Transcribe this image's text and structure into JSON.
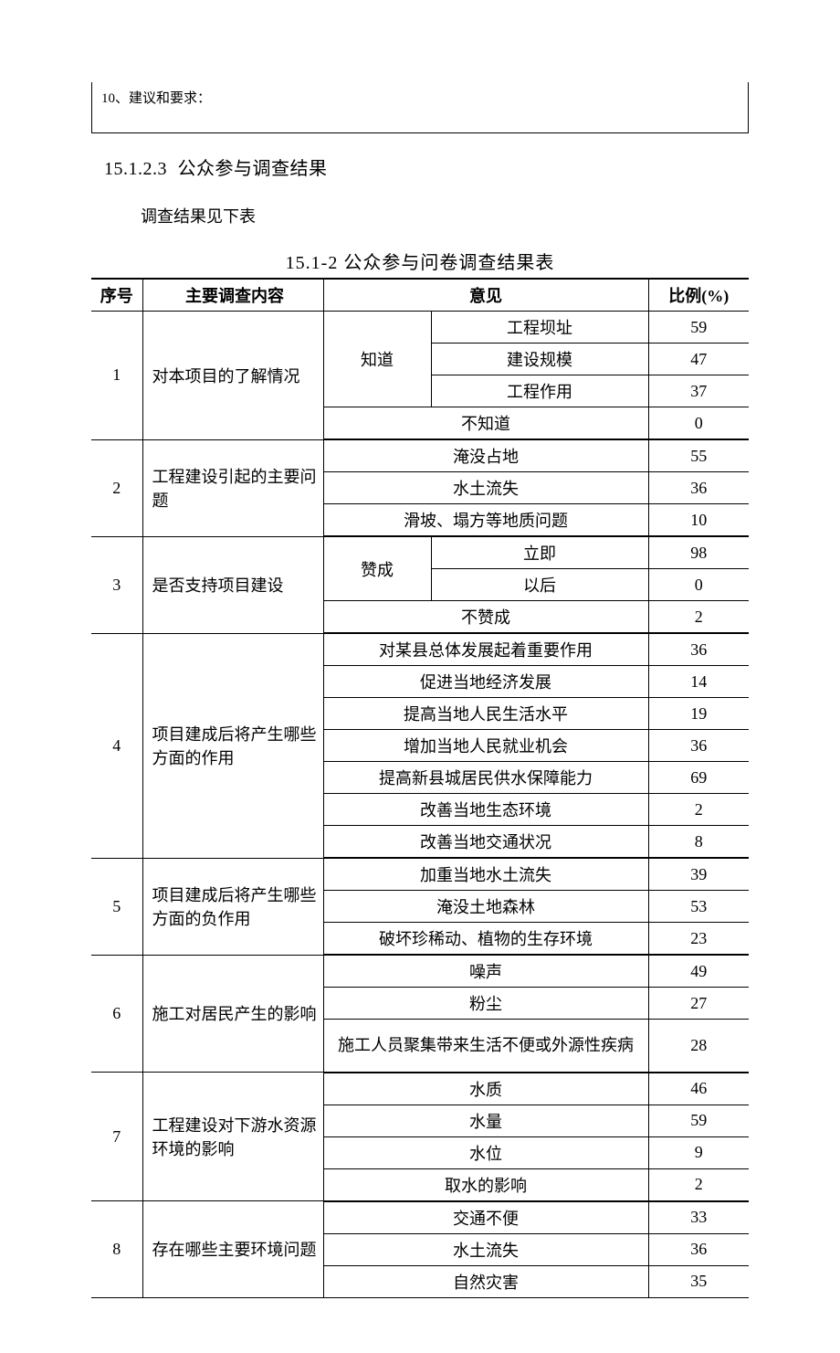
{
  "top_box_text": "10、建议和要求：",
  "heading_num": "15.1.2.3",
  "heading_text": "公众参与调查结果",
  "intro": "调查结果见下表",
  "table_title": "15.1-2 公众参与问卷调查结果表",
  "table": {
    "headers": {
      "no": "序号",
      "question": "主要调查内容",
      "opinion": "意见",
      "pct": "比例(%)"
    },
    "groups": [
      {
        "no": "1",
        "question": "对本项目的了解情况",
        "rows": [
          {
            "sub1": "知道",
            "sub1_span": 3,
            "sub2": "工程坝址",
            "pct": "59"
          },
          {
            "sub2": "建设规模",
            "pct": "47"
          },
          {
            "sub2": "工程作用",
            "pct": "37"
          },
          {
            "full": "不知道",
            "pct": "0"
          }
        ]
      },
      {
        "no": "2",
        "question": "工程建设引起的主要问题",
        "rows": [
          {
            "full": "淹没占地",
            "pct": "55"
          },
          {
            "full": "水土流失",
            "pct": "36"
          },
          {
            "full": "滑坡、塌方等地质问题",
            "pct": "10"
          }
        ]
      },
      {
        "no": "3",
        "question": "是否支持项目建设",
        "rows": [
          {
            "sub1": "赞成",
            "sub1_span": 2,
            "sub2": "立即",
            "pct": "98"
          },
          {
            "sub2": "以后",
            "pct": "0"
          },
          {
            "full": "不赞成",
            "pct": "2"
          }
        ]
      },
      {
        "no": "4",
        "question": "项目建成后将产生哪些方面的作用",
        "rows": [
          {
            "full": "对某县总体发展起着重要作用",
            "pct": "36"
          },
          {
            "full": "促进当地经济发展",
            "pct": "14"
          },
          {
            "full": "提高当地人民生活水平",
            "pct": "19"
          },
          {
            "full": "增加当地人民就业机会",
            "pct": "36"
          },
          {
            "full": "提高新县城居民供水保障能力",
            "pct": "69"
          },
          {
            "full": "改善当地生态环境",
            "pct": "2"
          },
          {
            "full": "改善当地交通状况",
            "pct": "8"
          }
        ]
      },
      {
        "no": "5",
        "question": "项目建成后将产生哪些方面的负作用",
        "rows": [
          {
            "full": "加重当地水土流失",
            "pct": "39"
          },
          {
            "full": "淹没土地森林",
            "pct": "53"
          },
          {
            "full": "破坏珍稀动、植物的生存环境",
            "pct": "23"
          }
        ]
      },
      {
        "no": "6",
        "question": "施工对居民产生的影响",
        "rows": [
          {
            "full": "噪声",
            "pct": "49"
          },
          {
            "full": "粉尘",
            "pct": "27"
          },
          {
            "full": "施工人员聚集带来生活不便或外源性疾病",
            "pct": "28",
            "tall": true
          }
        ]
      },
      {
        "no": "7",
        "question": "工程建设对下游水资源环境的影响",
        "rows": [
          {
            "full": "水质",
            "pct": "46"
          },
          {
            "full": "水量",
            "pct": "59"
          },
          {
            "full": "水位",
            "pct": "9"
          },
          {
            "full": "取水的影响",
            "pct": "2"
          }
        ]
      },
      {
        "no": "8",
        "question": "存在哪些主要环境问题",
        "rows": [
          {
            "full": "交通不便",
            "pct": "33"
          },
          {
            "full": "水土流失",
            "pct": "36"
          },
          {
            "full": "自然灾害",
            "pct": "35"
          }
        ]
      }
    ]
  }
}
